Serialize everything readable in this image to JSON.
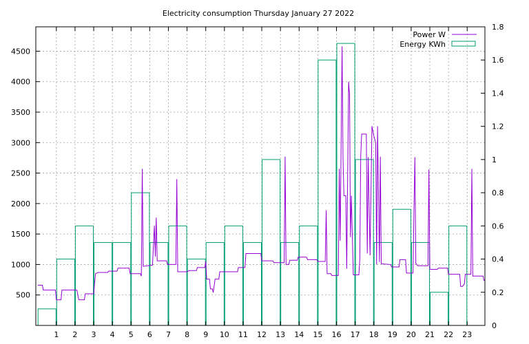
{
  "chart_data": {
    "type": "line",
    "title": "Electricity consumption Thursday January 27 2022",
    "xlabel": "",
    "ylabel": "",
    "y2label": "",
    "grid": true,
    "legend_position": "top-right",
    "colors": {
      "power": "#9400d3",
      "energy": "#009e73",
      "grid": "#a0a0a0",
      "frame": "#000000"
    },
    "x_ticks": [
      "1",
      "2",
      "3",
      "4",
      "5",
      "6",
      "7",
      "8",
      "9",
      "10",
      "11",
      "12",
      "13",
      "14",
      "15",
      "16",
      "17",
      "18",
      "19",
      "20",
      "21",
      "22",
      "23"
    ],
    "xlim": [
      -0.1,
      23.95
    ],
    "ylim": [
      0,
      4900
    ],
    "y_ticks": [
      "500",
      "1000",
      "1500",
      "2000",
      "2500",
      "3000",
      "3500",
      "4000",
      "4500"
    ],
    "y2lim": [
      0,
      1.8
    ],
    "y2_ticks": [
      "0",
      "0.2",
      "0.4",
      "0.6",
      "0.8",
      "1",
      "1.2",
      "1.4",
      "1.6",
      "1.8"
    ],
    "series": [
      {
        "name": "Power W",
        "kind": "line",
        "axis": "y1",
        "points": [
          [
            0.0,
            660
          ],
          [
            0.25,
            660
          ],
          [
            0.3,
            580
          ],
          [
            0.95,
            580
          ],
          [
            1.0,
            420
          ],
          [
            1.25,
            420
          ],
          [
            1.3,
            580
          ],
          [
            2.1,
            580
          ],
          [
            2.2,
            420
          ],
          [
            2.5,
            420
          ],
          [
            2.55,
            520
          ],
          [
            3.0,
            520
          ],
          [
            3.05,
            700
          ],
          [
            3.1,
            850
          ],
          [
            3.25,
            870
          ],
          [
            3.75,
            870
          ],
          [
            3.8,
            890
          ],
          [
            4.25,
            890
          ],
          [
            4.3,
            940
          ],
          [
            4.9,
            940
          ],
          [
            4.95,
            850
          ],
          [
            5.5,
            850
          ],
          [
            5.55,
            810
          ],
          [
            5.6,
            2570
          ],
          [
            5.65,
            970
          ],
          [
            6.15,
            990
          ],
          [
            6.25,
            1640
          ],
          [
            6.3,
            1130
          ],
          [
            6.35,
            1770
          ],
          [
            6.4,
            1060
          ],
          [
            6.9,
            1060
          ],
          [
            6.95,
            1000
          ],
          [
            7.4,
            1000
          ],
          [
            7.45,
            2400
          ],
          [
            7.5,
            880
          ],
          [
            8.0,
            880
          ],
          [
            8.1,
            900
          ],
          [
            8.5,
            900
          ],
          [
            8.55,
            950
          ],
          [
            8.95,
            950
          ],
          [
            9.0,
            1050
          ],
          [
            9.05,
            760
          ],
          [
            9.2,
            760
          ],
          [
            9.25,
            600
          ],
          [
            9.35,
            600
          ],
          [
            9.4,
            540
          ],
          [
            9.5,
            760
          ],
          [
            9.7,
            760
          ],
          [
            9.75,
            880
          ],
          [
            10.7,
            880
          ],
          [
            10.75,
            950
          ],
          [
            11.1,
            950
          ],
          [
            11.15,
            1180
          ],
          [
            11.95,
            1180
          ],
          [
            12.0,
            1060
          ],
          [
            12.6,
            1060
          ],
          [
            12.65,
            1030
          ],
          [
            13.2,
            1030
          ],
          [
            13.25,
            2770
          ],
          [
            13.3,
            1000
          ],
          [
            13.45,
            1000
          ],
          [
            13.5,
            1070
          ],
          [
            13.9,
            1070
          ],
          [
            13.95,
            1120
          ],
          [
            14.4,
            1120
          ],
          [
            14.45,
            1080
          ],
          [
            14.95,
            1080
          ],
          [
            15.0,
            1050
          ],
          [
            15.4,
            1050
          ],
          [
            15.45,
            1890
          ],
          [
            15.5,
            850
          ],
          [
            15.7,
            850
          ],
          [
            15.75,
            820
          ],
          [
            16.1,
            820
          ],
          [
            16.15,
            2570
          ],
          [
            16.2,
            1390
          ],
          [
            16.3,
            4580
          ],
          [
            16.35,
            2760
          ],
          [
            16.4,
            2130
          ],
          [
            16.5,
            2130
          ],
          [
            16.55,
            930
          ],
          [
            16.65,
            4000
          ],
          [
            16.7,
            3790
          ],
          [
            16.75,
            1450
          ],
          [
            16.8,
            2130
          ],
          [
            16.9,
            830
          ],
          [
            17.2,
            830
          ],
          [
            17.25,
            1090
          ],
          [
            17.3,
            2780
          ],
          [
            17.35,
            3140
          ],
          [
            17.6,
            3140
          ],
          [
            17.65,
            1180
          ],
          [
            17.7,
            2760
          ],
          [
            17.8,
            1150
          ],
          [
            17.9,
            3270
          ],
          [
            18.0,
            3110
          ],
          [
            18.1,
            3000
          ],
          [
            18.15,
            1000
          ],
          [
            18.2,
            3270
          ],
          [
            18.3,
            1040
          ],
          [
            18.35,
            2770
          ],
          [
            18.4,
            1010
          ],
          [
            18.9,
            1000
          ],
          [
            18.95,
            960
          ],
          [
            19.35,
            960
          ],
          [
            19.4,
            1080
          ],
          [
            19.7,
            1080
          ],
          [
            19.75,
            860
          ],
          [
            20.1,
            860
          ],
          [
            20.15,
            1890
          ],
          [
            20.2,
            2760
          ],
          [
            20.25,
            1020
          ],
          [
            20.35,
            980
          ],
          [
            20.9,
            980
          ],
          [
            20.95,
            2560
          ],
          [
            21.0,
            920
          ],
          [
            21.4,
            920
          ],
          [
            21.45,
            940
          ],
          [
            21.95,
            940
          ],
          [
            22.0,
            840
          ],
          [
            22.6,
            840
          ],
          [
            22.65,
            640
          ],
          [
            22.75,
            640
          ],
          [
            22.85,
            680
          ],
          [
            22.9,
            840
          ],
          [
            23.2,
            840
          ],
          [
            23.25,
            2570
          ],
          [
            23.3,
            810
          ],
          [
            23.85,
            810
          ],
          [
            23.9,
            740
          ],
          [
            23.95,
            740
          ]
        ]
      },
      {
        "name": "Energy KWh",
        "kind": "boxes",
        "axis": "y2",
        "boxes": [
          [
            0.5,
            0.1
          ],
          [
            1.5,
            0.4
          ],
          [
            2.5,
            0.6
          ],
          [
            3.5,
            0.5
          ],
          [
            4.5,
            0.5
          ],
          [
            5.5,
            0.8
          ],
          [
            6.5,
            0.5
          ],
          [
            7.5,
            0.6
          ],
          [
            8.5,
            0.4
          ],
          [
            9.5,
            0.5
          ],
          [
            10.5,
            0.6
          ],
          [
            11.5,
            0.5
          ],
          [
            12.5,
            1.0
          ],
          [
            13.5,
            0.5
          ],
          [
            14.5,
            0.6
          ],
          [
            15.5,
            1.6
          ],
          [
            16.5,
            1.7
          ],
          [
            17.5,
            1.0
          ],
          [
            18.5,
            0.5
          ],
          [
            19.5,
            0.7
          ],
          [
            20.5,
            0.5
          ],
          [
            21.5,
            0.2
          ],
          [
            22.5,
            0.6
          ]
        ]
      }
    ]
  }
}
